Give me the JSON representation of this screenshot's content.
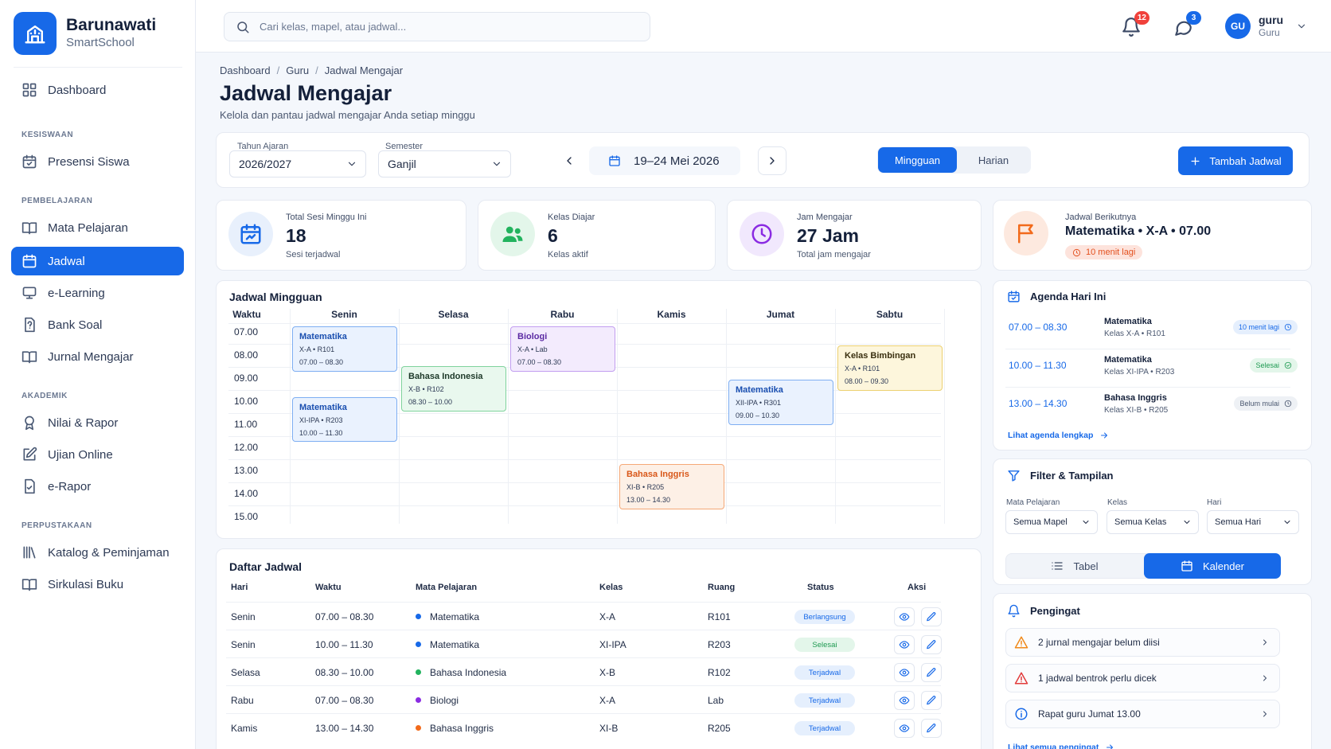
{
  "brand": {
    "name": "Barunawati",
    "subtitle": "SmartSchool"
  },
  "sidebar": {
    "dashboard": "Dashboard",
    "sections": {
      "kesiswaan": "KESISWAAN",
      "pembelajaran": "PEMBELAJARAN",
      "akademik": "AKADEMIK",
      "perpustakaan": "PERPUSTAKAAN"
    },
    "items": {
      "presensi": "Presensi Siswa",
      "mapel": "Mata Pelajaran",
      "jadwal": "Jadwal",
      "elearning": "e-Learning",
      "banksoal": "Bank Soal",
      "jurnal": "Jurnal Mengajar",
      "nilai": "Nilai & Rapor",
      "ujian": "Ujian Online",
      "erapor": "e-Rapor",
      "katalog": "Katalog & Peminjaman",
      "sirkulasi": "Sirkulasi Buku"
    }
  },
  "topbar": {
    "search_placeholder": "Cari kelas, mapel, atau jadwal...",
    "notif_count": "12",
    "message_count": "3",
    "user": {
      "initials": "GU",
      "name": "guru",
      "role": "Guru"
    }
  },
  "page": {
    "breadcrumb": [
      "Dashboard",
      "Guru",
      "Jadwal Mengajar"
    ],
    "title": "Jadwal Mengajar",
    "subtitle": "Kelola dan pantau jadwal mengajar Anda setiap minggu"
  },
  "toolbar": {
    "year_label": "Tahun Ajaran",
    "year_value": "2026/2027",
    "semester_label": "Semester",
    "semester_value": "Ganjil",
    "week_range": "19–24 Mei 2026",
    "view_weekly": "Mingguan",
    "view_daily": "Harian",
    "add_button": "Tambah Jadwal"
  },
  "stats": [
    {
      "label": "Total Sesi Minggu Ini",
      "value": "18",
      "sub": "Sesi terjadwal"
    },
    {
      "label": "Kelas Diajar",
      "value": "6",
      "sub": "Kelas aktif"
    },
    {
      "label": "Jam Mengajar",
      "value": "27 Jam",
      "sub": "Total jam mengajar"
    }
  ],
  "next_schedule": {
    "label": "Jadwal Berikutnya",
    "course": "Matematika • X-A • 07.00",
    "countdown": "10 menit lagi"
  },
  "weekly": {
    "title": "Jadwal Mingguan",
    "time_header": "Waktu",
    "days": [
      "Senin",
      "Selasa",
      "Rabu",
      "Kamis",
      "Jumat",
      "Sabtu"
    ],
    "times": [
      "07.00",
      "08.00",
      "09.00",
      "10.00",
      "11.00",
      "12.00",
      "13.00",
      "14.00",
      "15.00"
    ],
    "events": [
      {
        "title": "Matematika",
        "class": "X-A • R101",
        "time": "07.00 – 08.30"
      },
      {
        "title": "Matematika",
        "class": "XI-IPA • R203",
        "time": "10.00 – 11.30"
      },
      {
        "title": "Bahasa Indonesia",
        "class": "X-B • R102",
        "time": "08.30 – 10.00"
      },
      {
        "title": "Biologi",
        "class": "X-A • Lab",
        "time": "07.00 – 08.30"
      },
      {
        "title": "Bahasa Inggris",
        "class": "XI-B • R205",
        "time": "13.00 – 14.30"
      },
      {
        "title": "Matematika",
        "class": "XII-IPA • R301",
        "time": "09.00 – 10.30"
      },
      {
        "title": "Kelas Bimbingan",
        "class": "X-A • R101",
        "time": "08.00 – 09.30"
      }
    ]
  },
  "list": {
    "title": "Daftar Jadwal",
    "headers": [
      "Hari",
      "Waktu",
      "Mata Pelajaran",
      "Kelas",
      "Ruang",
      "Status",
      "Aksi"
    ],
    "rows": [
      {
        "day": "Senin",
        "time": "07.00 – 08.30",
        "course": "Matematika",
        "class": "X-A",
        "room": "R101",
        "status": "Berlangsung"
      },
      {
        "day": "Senin",
        "time": "10.00 – 11.30",
        "course": "Matematika",
        "class": "XI-IPA",
        "room": "R203",
        "status": "Selesai"
      },
      {
        "day": "Selasa",
        "time": "08.30 – 10.00",
        "course": "Bahasa Indonesia",
        "class": "X-B",
        "room": "R102",
        "status": "Terjadwal"
      },
      {
        "day": "Rabu",
        "time": "07.00 – 08.30",
        "course": "Biologi",
        "class": "X-A",
        "room": "Lab",
        "status": "Terjadwal"
      },
      {
        "day": "Kamis",
        "time": "13.00 – 14.30",
        "course": "Bahasa Inggris",
        "class": "XI-B",
        "room": "R205",
        "status": "Terjadwal"
      }
    ]
  },
  "agenda": {
    "title": "Agenda Hari Ini",
    "items": [
      {
        "time": "07.00 – 08.30",
        "course": "Matematika",
        "class": "Kelas X-A • R101",
        "status": "10 menit lagi"
      },
      {
        "time": "10.00 – 11.30",
        "course": "Matematika",
        "class": "Kelas XI-IPA • R203",
        "status": "Selesai"
      },
      {
        "time": "13.00 – 14.30",
        "course": "Bahasa Inggris",
        "class": "Kelas XI-B • R205",
        "status": "Belum mulai"
      }
    ],
    "link": "Lihat agenda lengkap"
  },
  "filter": {
    "title": "Filter & Tampilan",
    "mapel_label": "Mata Pelajaran",
    "mapel_value": "Semua Mapel",
    "kelas_label": "Kelas",
    "kelas_value": "Semua Kelas",
    "hari_label": "Hari",
    "hari_value": "Semua Hari",
    "mode_table": "Tabel",
    "mode_calendar": "Kalender"
  },
  "reminders": {
    "title": "Pengingat",
    "items": [
      "2 jurnal mengajar belum diisi",
      "1 jadwal bentrok perlu dicek",
      "Rapat guru Jumat 13.00"
    ],
    "link": "Lihat semua pengingat"
  },
  "colors": {
    "primary": "#1769e8",
    "math": "#1769e8",
    "bahasa_indonesia": "#22b35e",
    "biologi": "#8a2be2",
    "bahasa_inggris": "#f26a1b"
  }
}
